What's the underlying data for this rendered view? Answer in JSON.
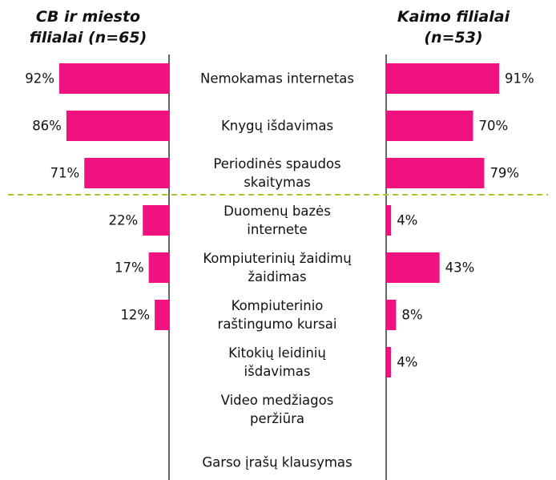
{
  "chart_data": {
    "type": "bar",
    "categories": [
      "Nemokamas internetas",
      "Knygų išdavimas",
      "Periodinės spaudos\nskaitymas",
      "Duomenų bazės\ninternete",
      "Kompiuterinių žaidimų\nžaidimas",
      "Kompiuterinio\nraštingumo kursai",
      "Kitokių leidinių\nišdavimas",
      "Video medžiagos\nperžiūra",
      "Garso įrašų klausymas"
    ],
    "series": [
      {
        "name": "CB ir miesto\nfilialai (n=65)",
        "color": "#f0127e",
        "values": [
          92,
          86,
          71,
          22,
          17,
          12,
          null,
          null,
          null
        ],
        "value_labels": [
          "92%",
          "86%",
          "71%",
          "22%",
          "17%",
          "12%",
          null,
          null,
          null
        ]
      },
      {
        "name": "Kaimo filialai\n(n=53)",
        "color": "#f0127e",
        "values": [
          91,
          70,
          79,
          4,
          43,
          8,
          4,
          null,
          null
        ],
        "value_labels": [
          "91%",
          "70%",
          "79%",
          "4%",
          "43%",
          "8%",
          "4%",
          null,
          null
        ]
      }
    ],
    "xlim": [
      0,
      100
    ]
  }
}
